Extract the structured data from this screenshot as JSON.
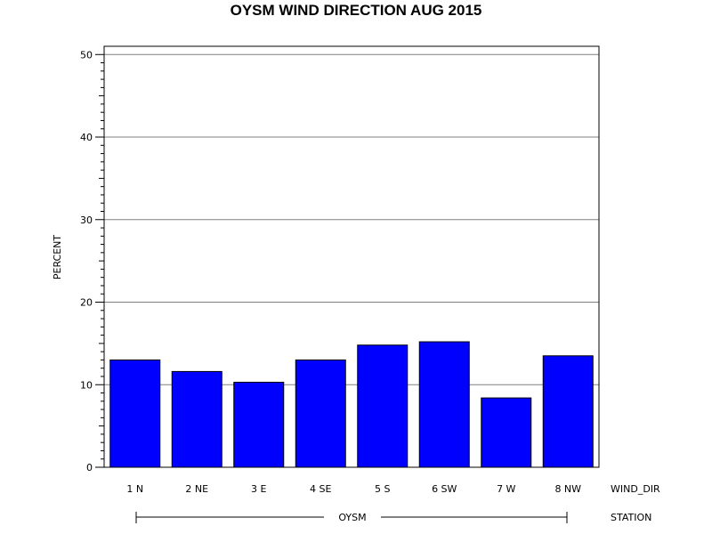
{
  "chart_data": {
    "type": "bar",
    "title": "OYSM WIND DIRECTION AUG 2015",
    "ylabel": "PERCENT",
    "xlabel": "WIND_DIR",
    "group_axis_label": "STATION",
    "group_label": "OYSM",
    "categories": [
      "1 N",
      "2 NE",
      "3 E",
      "4 SE",
      "5 S",
      "6 SW",
      "7 W",
      "8 NW"
    ],
    "values": [
      13.0,
      11.6,
      10.3,
      13.0,
      14.8,
      15.2,
      8.4,
      13.5
    ],
    "ylim": [
      0,
      51
    ],
    "yticks": [
      0,
      10,
      20,
      30,
      40,
      50
    ],
    "grid": true,
    "bar_color": "#0000ff"
  }
}
